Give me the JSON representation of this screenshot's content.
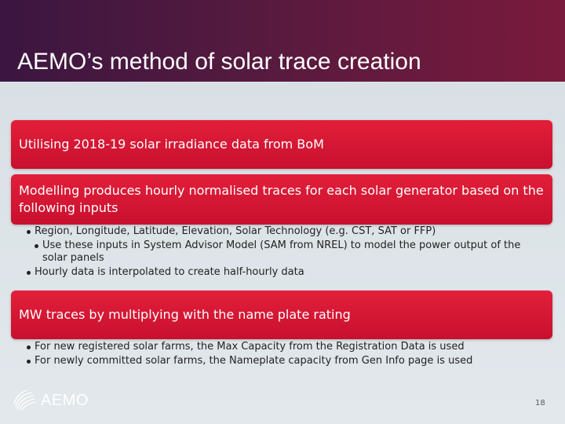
{
  "slide": {
    "title": "AEMO’s method of solar trace creation",
    "page_number": "18"
  },
  "box1": {
    "text": "Utilising 2018-19 solar irradiance data from BoM"
  },
  "box2": {
    "text": "Modelling produces hourly normalised traces for each solar generator based on the following inputs"
  },
  "box2_bullets": {
    "item1": "Region, Longitude, Latitude, Elevation, Solar Technology (e.g. CST, SAT or FFP)",
    "sub1_line1": "Use these inputs in System Advisor Model (SAM from NREL) to model the power output of the",
    "sub1_line2": "solar panels",
    "item2": "Hourly data is interpolated to create half-hourly data"
  },
  "box3": {
    "text": "MW traces by multiplying with the name plate rating"
  },
  "box3_bullets": {
    "item1": "For new registered solar farms, the Max Capacity from the Registration Data is used",
    "item2": "For newly committed solar farms, the Nameplate capacity from Gen Info page is used"
  },
  "logo": {
    "text": "AEMO",
    "icon": "aemo-logo-icon"
  },
  "colors": {
    "title_bar": "#561a3f",
    "red_box": "#d0142f",
    "background": "#dde4e9"
  }
}
